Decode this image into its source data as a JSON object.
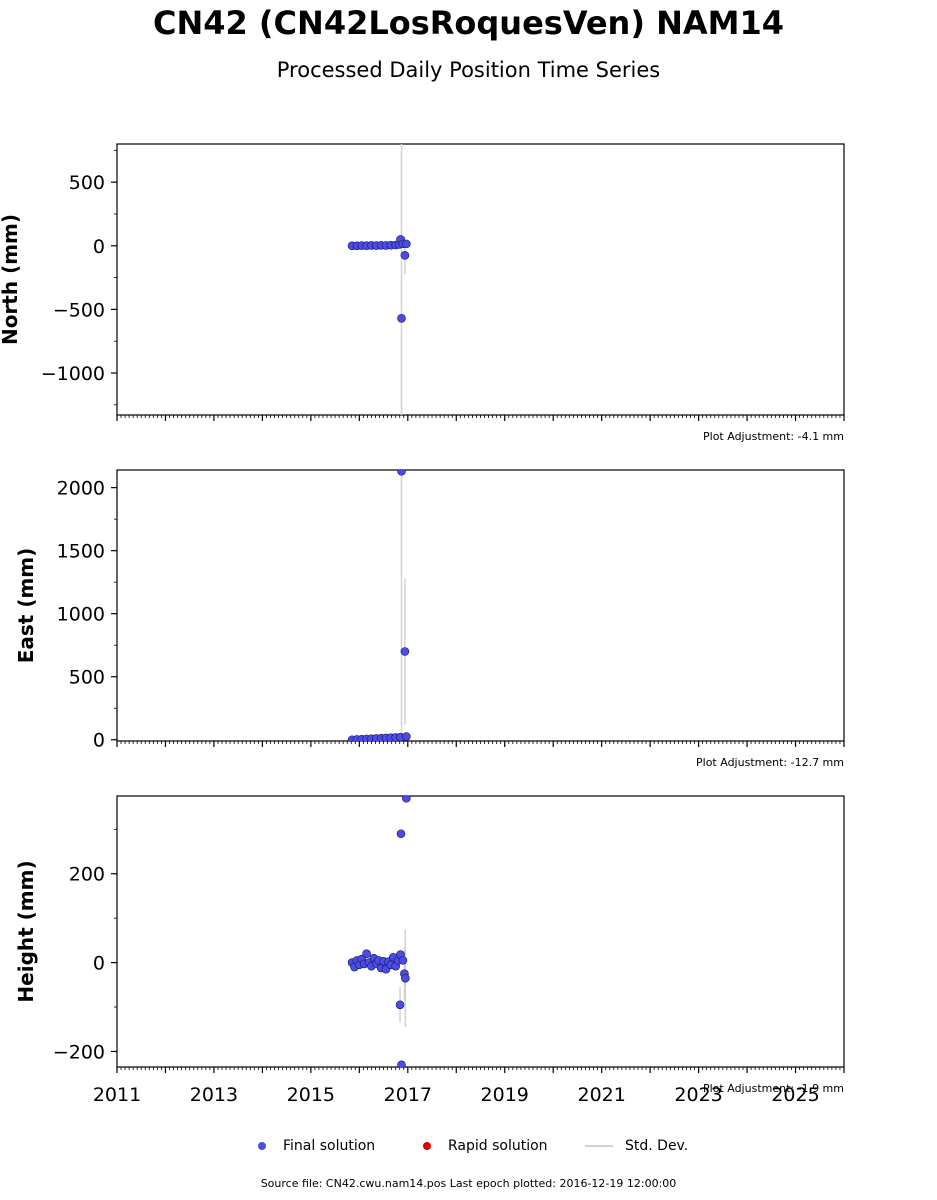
{
  "title": "CN42 (CN42LosRoquesVen) NAM14",
  "subtitle": "Processed Daily Position Time Series",
  "source_text": "Source file: CN42.cwu.nam14.pos  Last epoch plotted: 2016-12-19 12:00:00",
  "legend": {
    "final": "Final solution",
    "rapid": "Rapid solution",
    "stddev": "Std. Dev."
  },
  "colors": {
    "final": "#4b4bea",
    "rapid": "#e00000",
    "stddev": "#d3d3d3"
  },
  "chart_data": [
    {
      "type": "scatter",
      "ylabel": "North (mm)",
      "xlim": [
        2011,
        2026
      ],
      "ylim": [
        -1330,
        800
      ],
      "yticks": [
        500,
        0,
        -500,
        -1000
      ],
      "ytick_labels": [
        "500",
        "0",
        "−500",
        "−1000"
      ],
      "adjustment": "Plot Adjustment: -4.1 mm",
      "series": [
        {
          "x": [
            2015.85,
            2015.95,
            2016.05,
            2016.15,
            2016.25,
            2016.35,
            2016.45,
            2016.55,
            2016.65,
            2016.75,
            2016.82,
            2016.85,
            2016.87,
            2016.9,
            2016.94,
            2016.97
          ],
          "y": [
            0,
            0,
            2,
            1,
            3,
            2,
            4,
            3,
            5,
            6,
            10,
            50,
            -570,
            15,
            -75,
            15
          ],
          "err": [
            0,
            0,
            0,
            0,
            0,
            0,
            0,
            0,
            0,
            0,
            0,
            0,
            3000,
            0,
            150,
            0
          ]
        }
      ]
    },
    {
      "type": "scatter",
      "ylabel": "East (mm)",
      "xlim": [
        2011,
        2026
      ],
      "ylim": [
        -10,
        2140
      ],
      "yticks": [
        0,
        500,
        1000,
        1500,
        2000
      ],
      "ytick_labels": [
        "0",
        "500",
        "1000",
        "1500",
        "2000"
      ],
      "adjustment": "Plot Adjustment: -12.7 mm",
      "series": [
        {
          "x": [
            2015.85,
            2015.95,
            2016.05,
            2016.15,
            2016.25,
            2016.35,
            2016.45,
            2016.55,
            2016.65,
            2016.75,
            2016.85,
            2016.87,
            2016.94,
            2016.97
          ],
          "y": [
            0,
            2,
            4,
            6,
            8,
            10,
            12,
            14,
            16,
            18,
            20,
            2130,
            700,
            25
          ],
          "err": [
            0,
            0,
            0,
            0,
            0,
            0,
            0,
            0,
            0,
            0,
            0,
            3000,
            580,
            0
          ]
        }
      ]
    },
    {
      "type": "scatter",
      "ylabel": "Height (mm)",
      "xlabel": "",
      "xlim": [
        2011,
        2026
      ],
      "ylim": [
        -235,
        375
      ],
      "yticks": [
        -200,
        0,
        200
      ],
      "ytick_labels": [
        "−200",
        "0",
        "200"
      ],
      "xticks": [
        2011,
        2013,
        2015,
        2017,
        2019,
        2021,
        2023,
        2025
      ],
      "adjustment": "Plot Adjustment: -1.9 mm",
      "series": [
        {
          "x": [
            2015.85,
            2015.9,
            2015.95,
            2016.0,
            2016.05,
            2016.1,
            2016.15,
            2016.2,
            2016.25,
            2016.3,
            2016.35,
            2016.4,
            2016.45,
            2016.5,
            2016.55,
            2016.6,
            2016.65,
            2016.7,
            2016.75,
            2016.8,
            2016.84,
            2016.85,
            2016.86,
            2016.87,
            2016.9,
            2016.93,
            2016.95,
            2016.97
          ],
          "y": [
            0,
            -10,
            5,
            -5,
            8,
            -3,
            20,
            0,
            -8,
            10,
            -2,
            5,
            -12,
            3,
            -15,
            2,
            -5,
            12,
            -8,
            5,
            -95,
            18,
            290,
            -230,
            5,
            -25,
            -35,
            370
          ],
          "err": [
            0,
            0,
            0,
            0,
            0,
            0,
            0,
            0,
            0,
            0,
            0,
            0,
            0,
            0,
            0,
            0,
            0,
            0,
            0,
            0,
            40,
            0,
            0,
            0,
            0,
            60,
            110,
            0
          ]
        }
      ]
    }
  ]
}
